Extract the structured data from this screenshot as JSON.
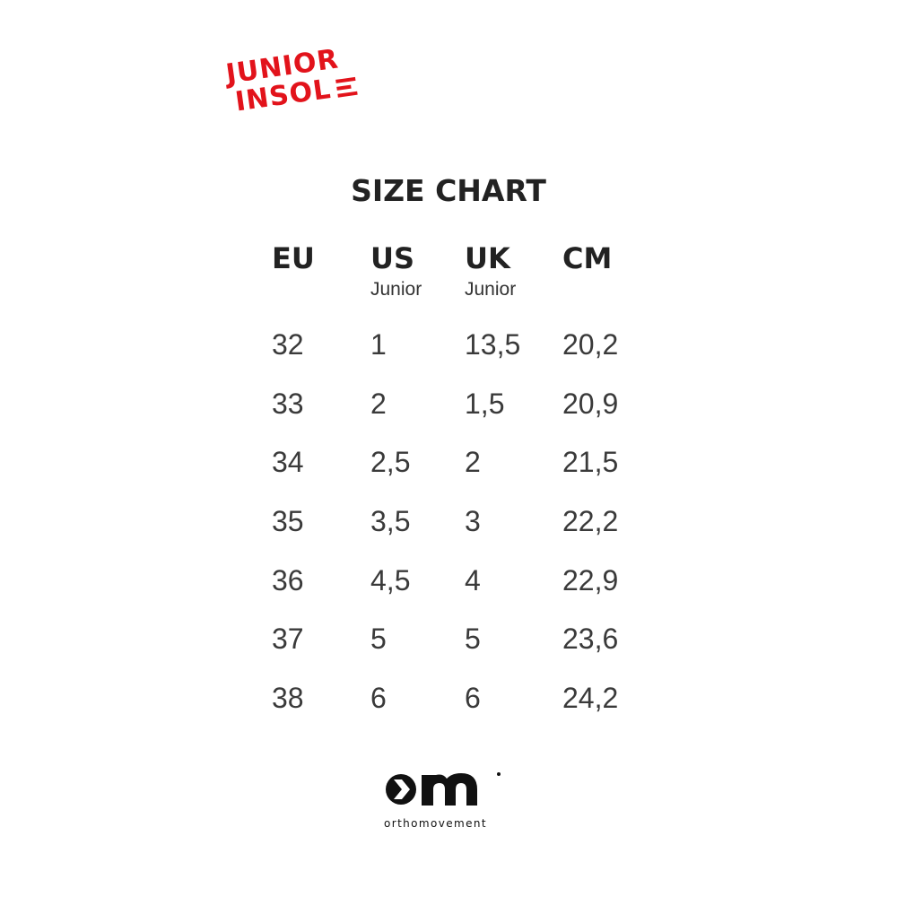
{
  "brand_logo": {
    "line1": "JUNIOR",
    "line2": "INSOL",
    "color": "#e2131b"
  },
  "title": "SIZE CHART",
  "columns": [
    {
      "header": "EU",
      "sub": "",
      "values": [
        "32",
        "33",
        "34",
        "35",
        "36",
        "37",
        "38"
      ]
    },
    {
      "header": "US",
      "sub": "Junior",
      "values": [
        "1",
        "2",
        "2,5",
        "3,5",
        "4,5",
        "5",
        "6"
      ]
    },
    {
      "header": "UK",
      "sub": "Junior",
      "values": [
        "13,5",
        "1,5",
        "2",
        "3",
        "4",
        "5",
        "6"
      ]
    },
    {
      "header": "CM",
      "sub": "",
      "values": [
        "20,2",
        "20,9",
        "21,5",
        "22,2",
        "22,9",
        "23,6",
        "24,2"
      ]
    }
  ],
  "footer_logo": {
    "mark": "om",
    "name": "orthomovement"
  }
}
